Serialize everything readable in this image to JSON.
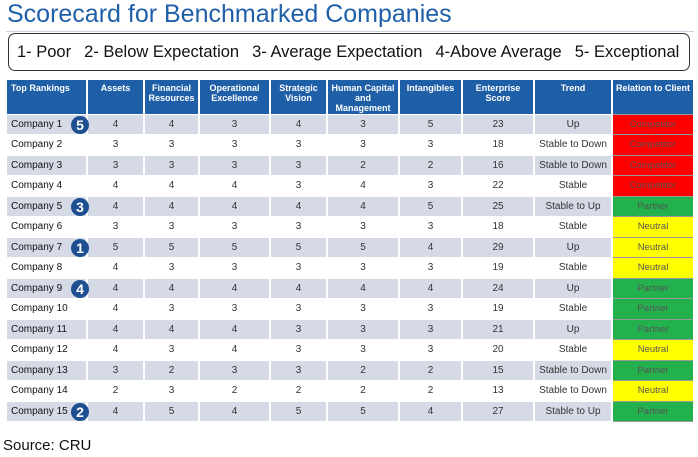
{
  "title": "Scorecard for Benchmarked Companies",
  "legend": [
    "1- Poor",
    "2- Below Expectation",
    "3- Average Expectation",
    "4-Above Average",
    "5- Exceptional"
  ],
  "headers": [
    "Top Rankings",
    "Assets",
    "Financial Resources",
    "Operational Excellence",
    "Strategic Vision",
    "Human Capital and Management",
    "Intangibles",
    "Enterprise Score",
    "Trend",
    "Relation to Client"
  ],
  "relation_colors": {
    "Competitor": "#ff0000",
    "Partner": "#22b14c",
    "Neutral": "#ffff00"
  },
  "rows": [
    {
      "company": "Company 1",
      "rank": "5",
      "assets": "4",
      "financial": "4",
      "operational": "3",
      "strategic": "4",
      "human": "3",
      "intangibles": "5",
      "score": "23",
      "trend": "Up",
      "relation": "Competitor"
    },
    {
      "company": "Company 2",
      "rank": "",
      "assets": "3",
      "financial": "3",
      "operational": "3",
      "strategic": "3",
      "human": "3",
      "intangibles": "3",
      "score": "18",
      "trend": "Stable to Down",
      "relation": "Competitor"
    },
    {
      "company": "Company 3",
      "rank": "",
      "assets": "3",
      "financial": "3",
      "operational": "3",
      "strategic": "3",
      "human": "2",
      "intangibles": "2",
      "score": "16",
      "trend": "Stable to Down",
      "relation": "Competitor"
    },
    {
      "company": "Company 4",
      "rank": "",
      "assets": "4",
      "financial": "4",
      "operational": "4",
      "strategic": "3",
      "human": "4",
      "intangibles": "3",
      "score": "22",
      "trend": "Stable",
      "relation": "Competitor"
    },
    {
      "company": "Company 5",
      "rank": "3",
      "assets": "4",
      "financial": "4",
      "operational": "4",
      "strategic": "4",
      "human": "4",
      "intangibles": "5",
      "score": "25",
      "trend": "Stable to Up",
      "relation": "Partner"
    },
    {
      "company": "Company 6",
      "rank": "",
      "assets": "3",
      "financial": "3",
      "operational": "3",
      "strategic": "3",
      "human": "3",
      "intangibles": "3",
      "score": "18",
      "trend": "Stable",
      "relation": "Neutral"
    },
    {
      "company": "Company 7",
      "rank": "1",
      "assets": "5",
      "financial": "5",
      "operational": "5",
      "strategic": "5",
      "human": "5",
      "intangibles": "4",
      "score": "29",
      "trend": "Up",
      "relation": "Neutral"
    },
    {
      "company": "Company 8",
      "rank": "",
      "assets": "4",
      "financial": "3",
      "operational": "3",
      "strategic": "3",
      "human": "3",
      "intangibles": "3",
      "score": "19",
      "trend": "Stable",
      "relation": "Neutral"
    },
    {
      "company": "Company 9",
      "rank": "4",
      "assets": "4",
      "financial": "4",
      "operational": "4",
      "strategic": "4",
      "human": "4",
      "intangibles": "4",
      "score": "24",
      "trend": "Up",
      "relation": "Partner"
    },
    {
      "company": "Company 10",
      "rank": "",
      "assets": "4",
      "financial": "3",
      "operational": "3",
      "strategic": "3",
      "human": "3",
      "intangibles": "3",
      "score": "19",
      "trend": "Stable",
      "relation": "Partner"
    },
    {
      "company": "Company 11",
      "rank": "",
      "assets": "4",
      "financial": "4",
      "operational": "4",
      "strategic": "3",
      "human": "3",
      "intangibles": "3",
      "score": "21",
      "trend": "Up",
      "relation": "Partner"
    },
    {
      "company": "Company 12",
      "rank": "",
      "assets": "4",
      "financial": "3",
      "operational": "4",
      "strategic": "3",
      "human": "3",
      "intangibles": "3",
      "score": "20",
      "trend": "Stable",
      "relation": "Neutral"
    },
    {
      "company": "Company 13",
      "rank": "",
      "assets": "3",
      "financial": "2",
      "operational": "3",
      "strategic": "3",
      "human": "2",
      "intangibles": "2",
      "score": "15",
      "trend": "Stable to Down",
      "relation": "Partner"
    },
    {
      "company": "Company 14",
      "rank": "",
      "assets": "2",
      "financial": "3",
      "operational": "2",
      "strategic": "2",
      "human": "2",
      "intangibles": "2",
      "score": "13",
      "trend": "Stable to Down",
      "relation": "Neutral"
    },
    {
      "company": "Company 15",
      "rank": "2",
      "assets": "4",
      "financial": "5",
      "operational": "4",
      "strategic": "5",
      "human": "5",
      "intangibles": "4",
      "score": "27",
      "trend": "Stable to Up",
      "relation": "Partner"
    }
  ],
  "source": "Source: CRU"
}
